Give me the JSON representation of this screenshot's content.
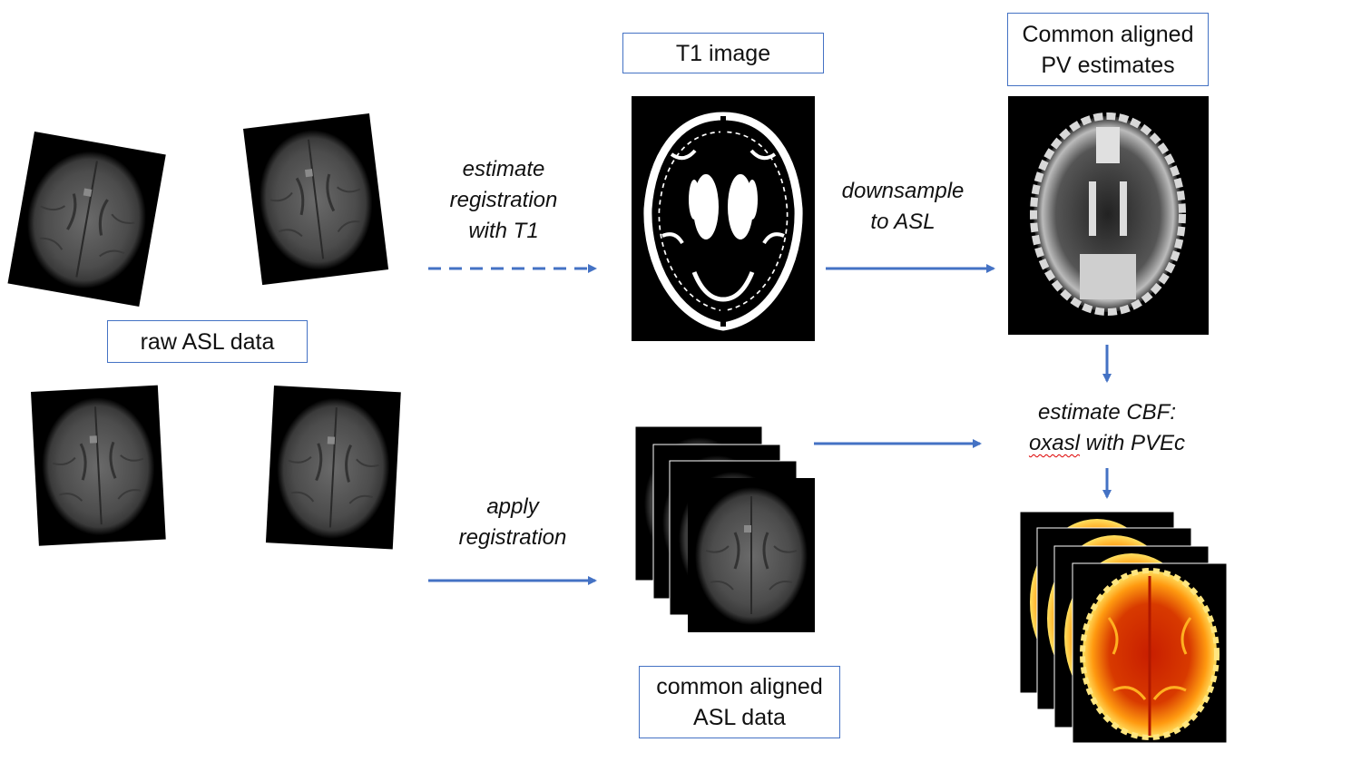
{
  "labels": {
    "raw_asl": "raw ASL data",
    "t1_image": "T1 image",
    "pv_estimates_line1": "Common aligned",
    "pv_estimates_line2": "PV estimates",
    "common_asl_line1": "common aligned",
    "common_asl_line2": "ASL data"
  },
  "steps": {
    "estimate_reg_line1": "estimate",
    "estimate_reg_line2": "registration",
    "estimate_reg_line3": "with T1",
    "apply_reg_line1": "apply",
    "apply_reg_line2": "registration",
    "downsample_line1": "downsample",
    "downsample_line2": "to ASL",
    "cbf_line1": "estimate CBF:",
    "cbf_line2_word1": "oxasl",
    "cbf_line2_rest": " with PVEc"
  },
  "colors": {
    "arrow": "#4472C4",
    "box_border": "#4472C4",
    "scan_bg": "#000000",
    "asl_tissue": "#5a5a5a",
    "t1_white": "#ffffff",
    "pv_gray": "#c8c8c8",
    "cbf_red": "#d42000",
    "cbf_yellow": "#ffd200"
  }
}
